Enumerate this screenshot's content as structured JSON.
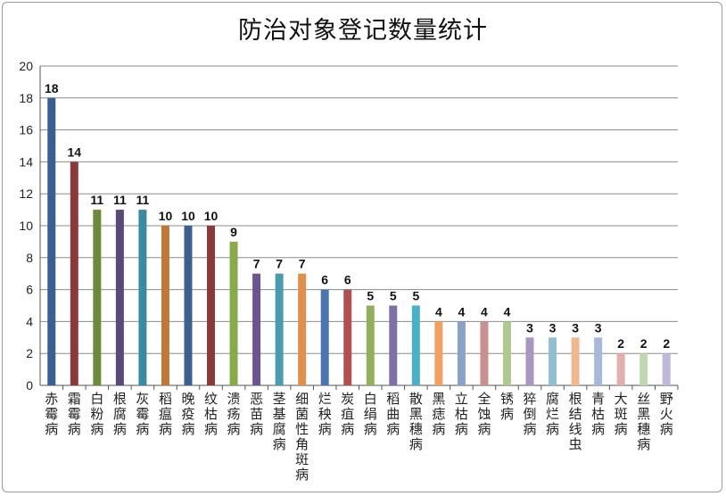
{
  "chart_data": {
    "type": "bar",
    "title": "防治对象登记数量统计",
    "ylim": [
      0,
      20
    ],
    "yticks": [
      0,
      2,
      4,
      6,
      8,
      10,
      12,
      14,
      16,
      18,
      20
    ],
    "grid": true,
    "data_labels": true,
    "categories": [
      "赤霉病",
      "霜霉病",
      "白粉病",
      "根腐病",
      "灰霉病",
      "稻瘟病",
      "晚疫病",
      "纹枯病",
      "溃疡病",
      "恶苗病",
      "茎基腐病",
      "细菌性角斑病",
      "烂秧病",
      "炭疽病",
      "白绢病",
      "稻曲病",
      "散黑穗病",
      "黑痣病",
      "立枯病",
      "全蚀病",
      "锈病",
      "猝倒病",
      "腐烂病",
      "根结线虫",
      "青枯病",
      "大斑病",
      "丝黑穗病",
      "野火病"
    ],
    "values": [
      18,
      14,
      11,
      11,
      11,
      10,
      10,
      10,
      9,
      7,
      7,
      7,
      6,
      6,
      5,
      5,
      5,
      4,
      4,
      4,
      4,
      3,
      3,
      3,
      3,
      2,
      2,
      2
    ],
    "colors": [
      "#3b5f8f",
      "#8a3a3a",
      "#6b8a3a",
      "#5a4a7a",
      "#3a8aa0",
      "#c07838",
      "#3b5f8f",
      "#8a3a3a",
      "#8aaa4a",
      "#6a5590",
      "#4a9ab0",
      "#e0904a",
      "#4a76b0",
      "#b05050",
      "#90b060",
      "#8070a8",
      "#4ab0c8",
      "#f0a060",
      "#8aa2c8",
      "#c89090",
      "#b0c890",
      "#a898c0",
      "#90c0d0",
      "#f0b890",
      "#a8b8d8",
      "#e0b0b0",
      "#c0d8b0",
      "#c0b8d8"
    ]
  }
}
